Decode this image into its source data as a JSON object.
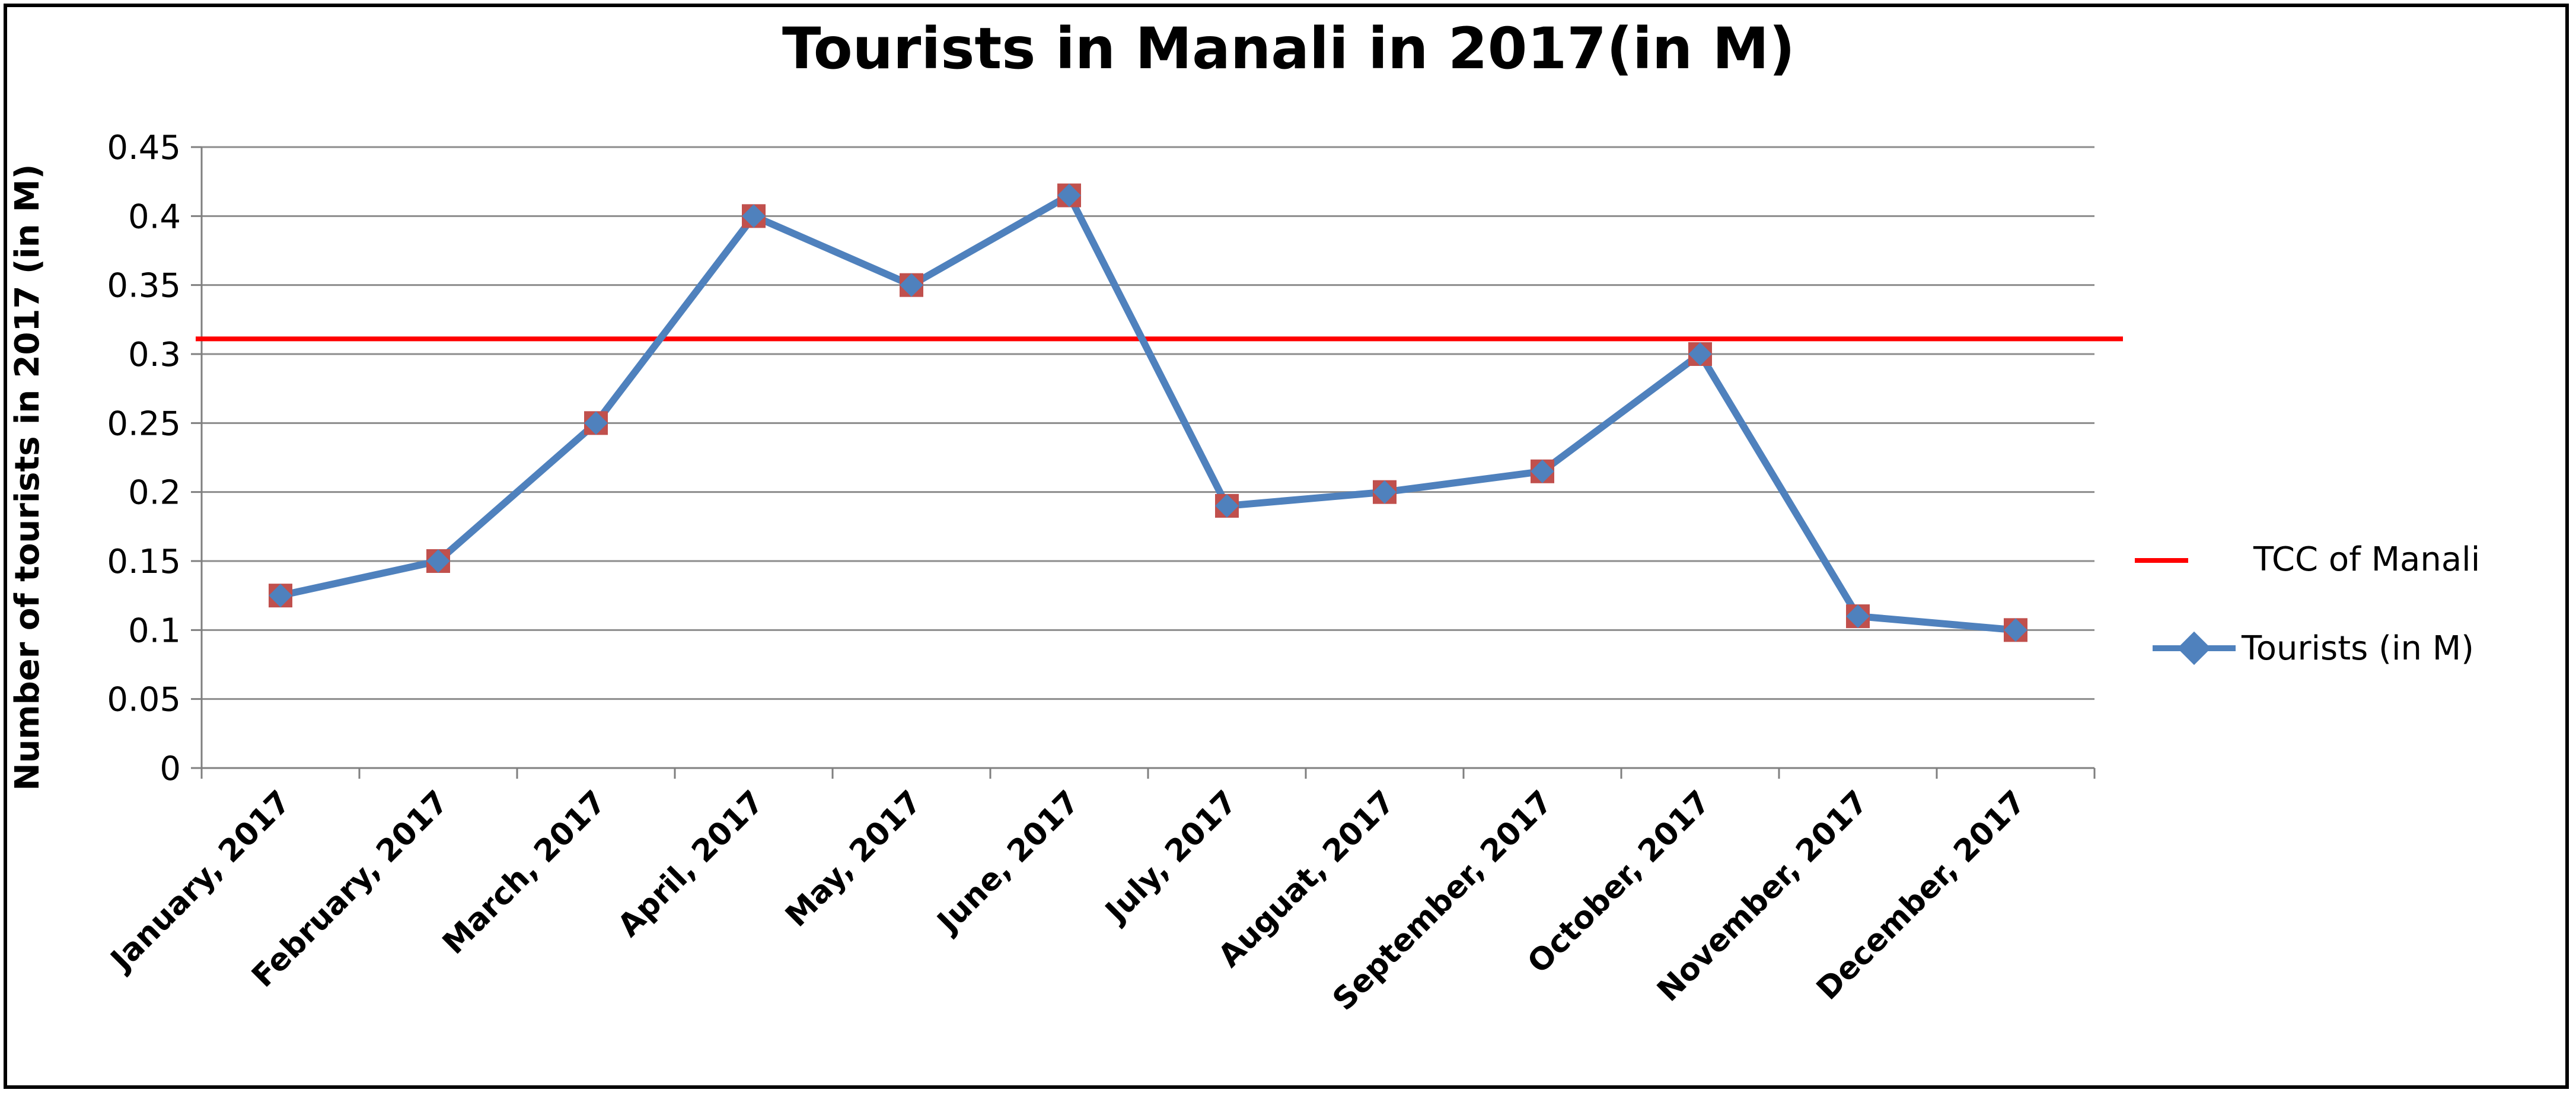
{
  "chart_data": {
    "type": "line",
    "title": "Tourists in Manali in 2017(in M)",
    "xlabel": "",
    "ylabel": "Number of tourists in 2017 (in M)",
    "ylim": [
      0,
      0.45
    ],
    "yticks": [
      0,
      0.05,
      0.1,
      0.15,
      0.2,
      0.25,
      0.3,
      0.35,
      0.4,
      0.45
    ],
    "ytick_labels": [
      "0",
      "0.05",
      "0.1",
      "0.15",
      "0.2",
      "0.25",
      "0.3",
      "0.35",
      "0.4",
      "0.45"
    ],
    "grid": true,
    "legend_position": "right",
    "categories": [
      "January, 2017",
      "February, 2017",
      "March, 2017",
      "April, 2017",
      "May, 2017",
      "June, 2017",
      "July, 2017",
      "Auguat, 2017",
      "September, 2017",
      "October, 2017",
      "November, 2017",
      "December, 2017"
    ],
    "series": [
      {
        "name": "Tourists (in M)",
        "color": "#4f81bd",
        "marker_color": "#c0504d",
        "values": [
          0.125,
          0.15,
          0.25,
          0.4,
          0.35,
          0.415,
          0.19,
          0.2,
          0.215,
          0.3,
          0.11,
          0.1
        ]
      }
    ],
    "reference_lines": [
      {
        "name": "TCC of Manali",
        "color": "#ff0000",
        "value": 0.311
      }
    ]
  }
}
